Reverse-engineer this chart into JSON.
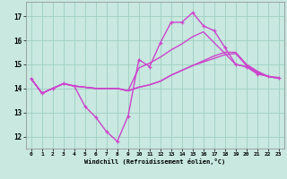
{
  "bg_color": "#c8e8e0",
  "grid_color": "#9ecfbf",
  "line_color": "#cc44cc",
  "ylim": [
    11.5,
    17.6
  ],
  "xlim": [
    -0.5,
    23.5
  ],
  "yticks": [
    12,
    13,
    14,
    15,
    16,
    17
  ],
  "xticks": [
    0,
    1,
    2,
    3,
    4,
    5,
    6,
    7,
    8,
    9,
    10,
    11,
    12,
    13,
    14,
    15,
    16,
    17,
    18,
    19,
    20,
    21,
    22,
    23
  ],
  "xlabel": "Windchill (Refroidissement éolien,°C)",
  "curve1_x": [
    0,
    1,
    2,
    3,
    4,
    5,
    6,
    7,
    8,
    9,
    10,
    11,
    12,
    13,
    14,
    15,
    16,
    17,
    18,
    19,
    20,
    21,
    22,
    23
  ],
  "curve1_y": [
    14.4,
    13.8,
    14.0,
    14.2,
    14.1,
    13.25,
    12.8,
    12.2,
    11.8,
    12.85,
    15.2,
    14.9,
    15.9,
    16.75,
    16.75,
    17.15,
    16.6,
    16.4,
    15.7,
    15.0,
    14.9,
    14.6,
    14.5,
    14.45
  ],
  "curve2_x": [
    0,
    1,
    2,
    3,
    4,
    5,
    6,
    7,
    8,
    9,
    10,
    11,
    12,
    13,
    14,
    15,
    16,
    17,
    18,
    19,
    20,
    21,
    22,
    23
  ],
  "curve2_y": [
    14.4,
    13.8,
    14.0,
    14.2,
    14.1,
    14.05,
    14.0,
    14.0,
    14.0,
    13.9,
    14.05,
    14.15,
    14.3,
    14.55,
    14.75,
    14.95,
    15.15,
    15.35,
    15.5,
    15.5,
    15.0,
    14.72,
    14.5,
    14.42
  ],
  "curve3_x": [
    0,
    1,
    2,
    3,
    4,
    5,
    6,
    7,
    8,
    9,
    10,
    11,
    12,
    13,
    14,
    15,
    16,
    17,
    18,
    19,
    20,
    21,
    22,
    23
  ],
  "curve3_y": [
    14.4,
    13.8,
    14.0,
    14.2,
    14.1,
    14.05,
    14.0,
    14.0,
    14.0,
    13.9,
    14.85,
    15.05,
    15.3,
    15.6,
    15.85,
    16.15,
    16.35,
    15.9,
    15.45,
    15.0,
    14.9,
    14.65,
    14.5,
    14.42
  ],
  "curve4_x": [
    0,
    1,
    2,
    3,
    4,
    5,
    6,
    7,
    8,
    9,
    10,
    11,
    12,
    13,
    14,
    15,
    16,
    17,
    18,
    19,
    20,
    21,
    22,
    23
  ],
  "curve4_y": [
    14.4,
    13.8,
    14.0,
    14.2,
    14.1,
    14.05,
    14.0,
    14.0,
    14.0,
    13.9,
    14.05,
    14.15,
    14.3,
    14.55,
    14.75,
    14.95,
    15.1,
    15.25,
    15.4,
    15.45,
    14.95,
    14.68,
    14.5,
    14.42
  ]
}
